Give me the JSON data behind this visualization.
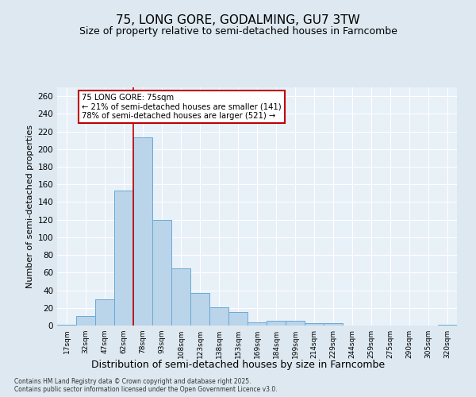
{
  "title": "75, LONG GORE, GODALMING, GU7 3TW",
  "subtitle": "Size of property relative to semi-detached houses in Farncombe",
  "xlabel": "Distribution of semi-detached houses by size in Farncombe",
  "ylabel": "Number of semi-detached properties",
  "categories": [
    "17sqm",
    "32sqm",
    "47sqm",
    "62sqm",
    "78sqm",
    "93sqm",
    "108sqm",
    "123sqm",
    "138sqm",
    "153sqm",
    "169sqm",
    "184sqm",
    "199sqm",
    "214sqm",
    "229sqm",
    "244sqm",
    "259sqm",
    "275sqm",
    "290sqm",
    "305sqm",
    "320sqm"
  ],
  "values": [
    1,
    11,
    30,
    153,
    213,
    120,
    65,
    37,
    21,
    15,
    4,
    5,
    5,
    3,
    3,
    0,
    0,
    0,
    0,
    0,
    1
  ],
  "bar_color": "#bad4ea",
  "bar_edge_color": "#6aaad4",
  "vline_color": "#c00000",
  "vline_index": 4,
  "annotation_text": "75 LONG GORE: 75sqm\n← 21% of semi-detached houses are smaller (141)\n78% of semi-detached houses are larger (521) →",
  "annotation_box_color": "#ffffff",
  "annotation_box_edge": "#c00000",
  "ylim": [
    0,
    270
  ],
  "yticks": [
    0,
    20,
    40,
    60,
    80,
    100,
    120,
    140,
    160,
    180,
    200,
    220,
    240,
    260
  ],
  "footer_line1": "Contains HM Land Registry data © Crown copyright and database right 2025.",
  "footer_line2": "Contains public sector information licensed under the Open Government Licence v3.0.",
  "bg_color": "#dde8f0",
  "plot_bg_color": "#e8f0f8",
  "grid_color": "#ffffff",
  "title_fontsize": 11,
  "subtitle_fontsize": 9,
  "ylabel_fontsize": 8,
  "xlabel_fontsize": 9
}
